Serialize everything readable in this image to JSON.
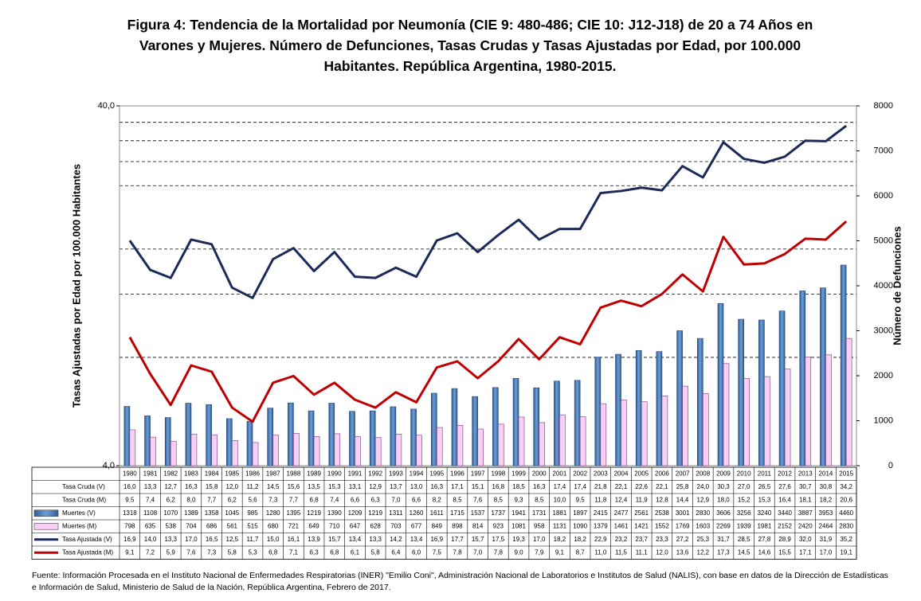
{
  "chart_data": {
    "type": "bar-line",
    "title": "Figura 4: Tendencia de la Mortalidad por Neumonía (CIE 9: 480-486; CIE 10: J12-J18) de 20 a 74 Años en Varones y Mujeres. Número de Defunciones, Tasas Crudas y Tasas Ajustadas por Edad, por 100.000 Habitantes. República Argentina, 1980-2015.",
    "ylabel": "Tasas Ajustadas por Edad por 100.000 Habitantes",
    "y2label": "Número de Defunciones",
    "source": "Fuente:  Información Procesada en el Instituto Nacional de Enfermedades Respiratorias (INER) \"Emilio Coni\", Administración Nacional de Laboratorios e Institutos de Salud (NALIS),  con base en datos de la Dirección de Estadísticas e Información de Salud, Ministerio de Salud de la Nación, República Argentina, Febrero de 2017.",
    "categories": [
      "1980",
      "1981",
      "1982",
      "1983",
      "1984",
      "1985",
      "1986",
      "1987",
      "1988",
      "1989",
      "1990",
      "1991",
      "1992",
      "1993",
      "1994",
      "1995",
      "1996",
      "1997",
      "1998",
      "1999",
      "2000",
      "2001",
      "2002",
      "2003",
      "2004",
      "2005",
      "2006",
      "2007",
      "2008",
      "2009",
      "2010",
      "2011",
      "2012",
      "2013",
      "2014",
      "2015"
    ],
    "ylim": [
      4,
      40
    ],
    "log_y": true,
    "yticks": [
      {
        "value": 4,
        "label": "4,0"
      },
      {
        "value": 40,
        "label": "40,0"
      }
    ],
    "y_gridlines": [
      8,
      12,
      16,
      24,
      28,
      32,
      36
    ],
    "y2lim": [
      0,
      8000
    ],
    "y2ticks": [
      0,
      1000,
      2000,
      3000,
      4000,
      5000,
      6000,
      7000,
      8000
    ],
    "table_rows": [
      {
        "name": "Tasa Cruda (V)",
        "values": [
          16.0,
          13.3,
          12.7,
          16.3,
          15.8,
          12.0,
          11.2,
          14.5,
          15.6,
          13.5,
          15.3,
          13.1,
          12.9,
          13.7,
          13.0,
          16.3,
          17.1,
          15.1,
          16.8,
          18.5,
          16.3,
          17.4,
          17.4,
          21.8,
          22.1,
          22.6,
          22.1,
          25.8,
          24.0,
          30.3,
          27.0,
          26.5,
          27.6,
          30.7,
          30.8,
          34.2
        ],
        "value_labels": [
          "16,0",
          "13,3",
          "12,7",
          "16,3",
          "15,8",
          "12,0",
          "11,2",
          "14,5",
          "15,6",
          "13,5",
          "15,3",
          "13,1",
          "12,9",
          "13,7",
          "13,0",
          "16,3",
          "17,1",
          "15,1",
          "16,8",
          "18,5",
          "16,3",
          "17,4",
          "17,4",
          "21,8",
          "22,1",
          "22,6",
          "22,1",
          "25,8",
          "24,0",
          "30,3",
          "27,0",
          "26,5",
          "27,6",
          "30,7",
          "30,8",
          "34,2"
        ]
      },
      {
        "name": "Tasa Cruda (M)",
        "values": [
          9.5,
          7.4,
          6.2,
          8.0,
          7.7,
          6.2,
          5.6,
          7.3,
          7.7,
          6.8,
          7.4,
          6.6,
          6.3,
          7.0,
          6.6,
          8.2,
          8.5,
          7.6,
          8.5,
          9.3,
          8.5,
          10.0,
          9.5,
          11.8,
          12.4,
          11.9,
          12.8,
          14.4,
          12.9,
          18.0,
          15.2,
          15.3,
          16.4,
          18.1,
          18.2,
          20.6
        ],
        "value_labels": [
          "9,5",
          "7,4",
          "6,2",
          "8,0",
          "7,7",
          "6,2",
          "5,6",
          "7,3",
          "7,7",
          "6,8",
          "7,4",
          "6,6",
          "6,3",
          "7,0",
          "6,6",
          "8,2",
          "8,5",
          "7,6",
          "8,5",
          "9,3",
          "8,5",
          "10,0",
          "9,5",
          "11,8",
          "12,4",
          "11,9",
          "12,8",
          "14,4",
          "12,9",
          "18,0",
          "15,2",
          "15,3",
          "16,4",
          "18,1",
          "18,2",
          "20,6"
        ]
      }
    ],
    "series": [
      {
        "name": "Muertes (V)",
        "kind": "bar",
        "axis": "y2",
        "color": "#4f81bd",
        "values": [
          1318,
          1108,
          1070,
          1389,
          1358,
          1045,
          985,
          1280,
          1395,
          1219,
          1390,
          1209,
          1219,
          1311,
          1260,
          1611,
          1715,
          1537,
          1737,
          1941,
          1731,
          1881,
          1897,
          2415,
          2477,
          2561,
          2538,
          3001,
          2830,
          3606,
          3256,
          3240,
          3440,
          3887,
          3953,
          4460
        ]
      },
      {
        "name": "Muertes (M)",
        "kind": "bar",
        "axis": "y2",
        "color": "#f7d0f5",
        "values": [
          798,
          635,
          538,
          704,
          686,
          561,
          515,
          680,
          721,
          649,
          710,
          647,
          628,
          703,
          677,
          849,
          898,
          814,
          923,
          1081,
          958,
          1131,
          1090,
          1379,
          1461,
          1421,
          1552,
          1769,
          1603,
          2269,
          1939,
          1981,
          2152,
          2420,
          2464,
          2830
        ]
      },
      {
        "name": "Tasa Ajustada (V)",
        "kind": "line",
        "color": "#1c2a5a",
        "values": [
          16.9,
          14.0,
          13.3,
          17.0,
          16.5,
          12.5,
          11.7,
          15.0,
          16.1,
          13.9,
          15.7,
          13.4,
          13.3,
          14.2,
          13.4,
          16.9,
          17.7,
          15.7,
          17.5,
          19.3,
          17.0,
          18.2,
          18.2,
          22.9,
          23.2,
          23.7,
          23.3,
          27.2,
          25.3,
          31.7,
          28.5,
          27.8,
          28.9,
          32.0,
          31.9,
          35.2
        ],
        "value_labels": [
          "16,9",
          "14,0",
          "13,3",
          "17,0",
          "16,5",
          "12,5",
          "11,7",
          "15,0",
          "16,1",
          "13,9",
          "15,7",
          "13,4",
          "13,3",
          "14,2",
          "13,4",
          "16,9",
          "17,7",
          "15,7",
          "17,5",
          "19,3",
          "17,0",
          "18,2",
          "18,2",
          "22,9",
          "23,2",
          "23,7",
          "23,3",
          "27,2",
          "25,3",
          "31,7",
          "28,5",
          "27,8",
          "28,9",
          "32,0",
          "31,9",
          "35,2"
        ]
      },
      {
        "name": "Tasa Ajustada (M)",
        "kind": "line",
        "color": "#c00000",
        "values": [
          9.1,
          7.2,
          5.9,
          7.6,
          7.3,
          5.8,
          5.3,
          6.8,
          7.1,
          6.3,
          6.8,
          6.1,
          5.8,
          6.4,
          6.0,
          7.5,
          7.8,
          7.0,
          7.8,
          9.0,
          7.9,
          9.1,
          8.7,
          11.0,
          11.5,
          11.1,
          12.0,
          13.6,
          12.2,
          17.3,
          14.5,
          14.6,
          15.5,
          17.1,
          17.0,
          19.1
        ],
        "value_labels": [
          "9,1",
          "7,2",
          "5,9",
          "7,6",
          "7,3",
          "5,8",
          "5,3",
          "6,8",
          "7,1",
          "6,3",
          "6,8",
          "6,1",
          "5,8",
          "6,4",
          "6,0",
          "7,5",
          "7,8",
          "7,0",
          "7,8",
          "9,0",
          "7,9",
          "9,1",
          "8,7",
          "11,0",
          "11,5",
          "11,1",
          "12,0",
          "13,6",
          "12,2",
          "17,3",
          "14,5",
          "14,6",
          "15,5",
          "17,1",
          "17,0",
          "19,1"
        ]
      }
    ]
  }
}
